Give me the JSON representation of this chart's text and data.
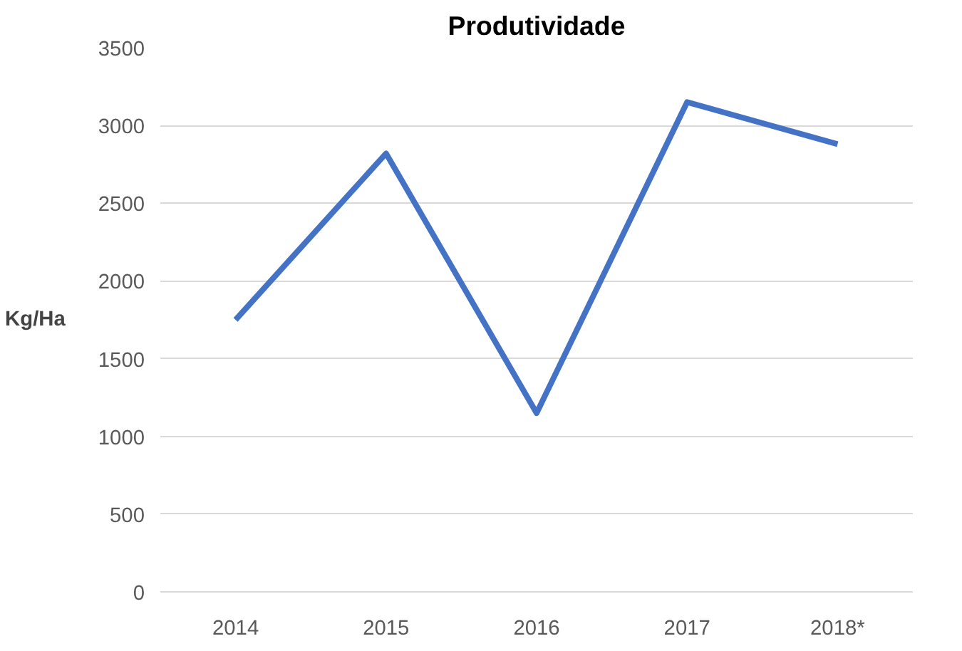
{
  "chart_data": {
    "type": "line",
    "title": "Produtividade",
    "ylabel": "Kg/Ha",
    "categories": [
      "2014",
      "2015",
      "2016",
      "2017",
      "2018*"
    ],
    "series": [
      {
        "color": "#4472c4",
        "values": [
          1750,
          2820,
          1150,
          3150,
          2880
        ]
      }
    ],
    "ylim": [
      0,
      3500
    ],
    "yticks": [
      0,
      500,
      1000,
      1500,
      2000,
      2500,
      3000,
      3500
    ],
    "grid": "y",
    "marker": "none"
  }
}
